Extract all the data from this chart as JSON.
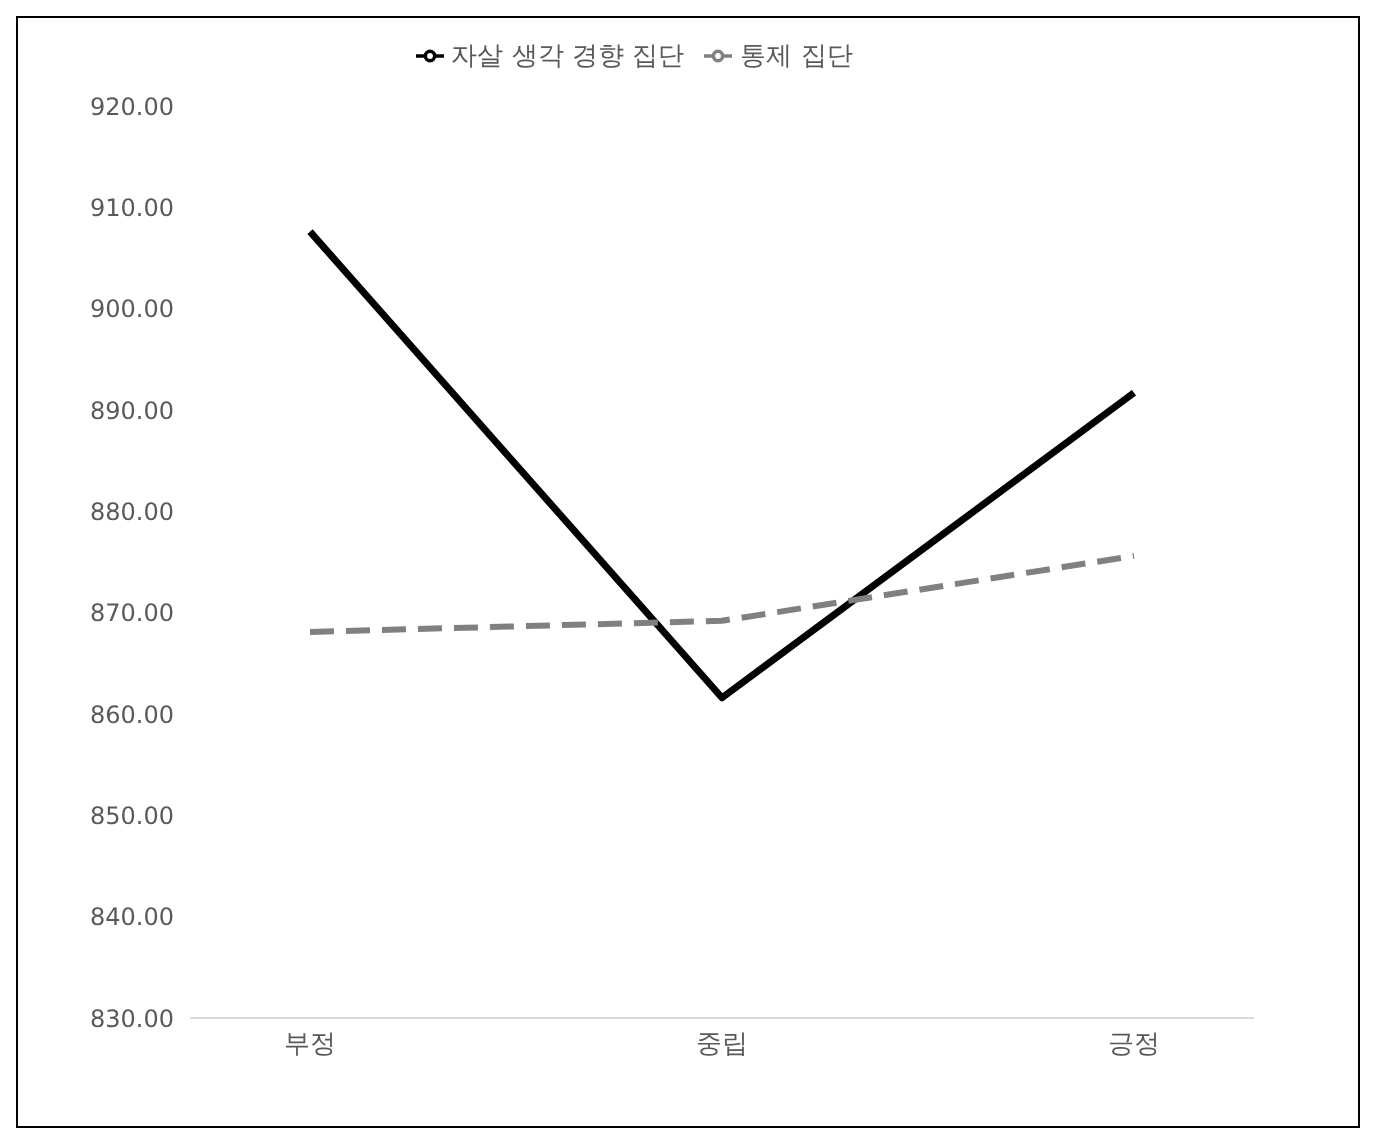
{
  "chart_data": {
    "type": "line",
    "categories": [
      "부정",
      "중립",
      "긍정"
    ],
    "series": [
      {
        "name": "자살 생각 경향 집단",
        "color": "#000000",
        "line_style": "solid",
        "values": [
          907.6,
          861.6,
          891.7
        ]
      },
      {
        "name": "통제 집단",
        "color": "#808080",
        "line_style": "dashed",
        "values": [
          868.1,
          869.2,
          875.6
        ]
      }
    ],
    "ylim": [
      830,
      920
    ],
    "yticks": [
      {
        "value": 830,
        "label": "830.00"
      },
      {
        "value": 840,
        "label": "840.00"
      },
      {
        "value": 850,
        "label": "850.00"
      },
      {
        "value": 860,
        "label": "860.00"
      },
      {
        "value": 870,
        "label": "870.00"
      },
      {
        "value": 880,
        "label": "880.00"
      },
      {
        "value": 890,
        "label": "890.00"
      },
      {
        "value": 900,
        "label": "900.00"
      },
      {
        "value": 910,
        "label": "910.00"
      },
      {
        "value": 920,
        "label": "920.00"
      }
    ],
    "grid": false,
    "legend": "top",
    "marker": "none"
  }
}
